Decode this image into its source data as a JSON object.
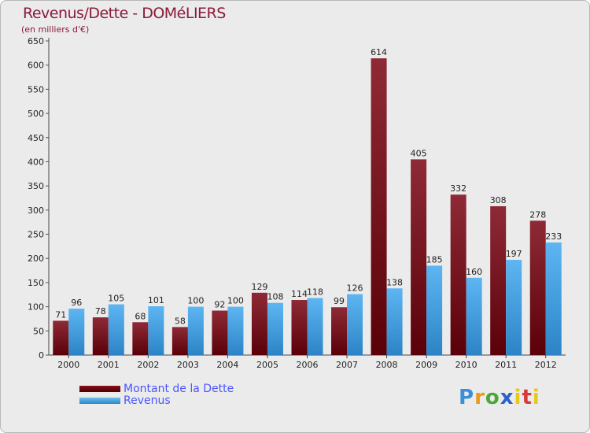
{
  "header": {
    "title": "Revenus/Dette - DOMéLIERS",
    "subtitle": "(en milliers d'€)"
  },
  "legend": {
    "debt_label": "Montant de la Dette",
    "revenue_label": "Revenus"
  },
  "logo": {
    "text": "Proxiti"
  },
  "colors": {
    "debt_top": "#8e2a36",
    "debt_bottom": "#5a0008",
    "revenue_top": "#5db6f2",
    "revenue_bottom": "#2c84c6",
    "title": "#8b1a3a",
    "legend_text": "#4a55ff"
  },
  "chart_data": {
    "type": "bar",
    "title": "Revenus/Dette - DOMéLIERS",
    "ylabel": "(en milliers d'€)",
    "xlabel": "",
    "ylim": [
      0,
      650
    ],
    "ytick_step": 50,
    "grid": false,
    "legend_position": "bottom-left",
    "categories": [
      "2000",
      "2001",
      "2002",
      "2003",
      "2004",
      "2005",
      "2006",
      "2007",
      "2008",
      "2009",
      "2010",
      "2011",
      "2012"
    ],
    "series": [
      {
        "name": "Montant de la Dette",
        "values": [
          71,
          78,
          68,
          58,
          92,
          129,
          114,
          99,
          614,
          405,
          332,
          308,
          278
        ]
      },
      {
        "name": "Revenus",
        "values": [
          96,
          105,
          101,
          100,
          100,
          108,
          118,
          126,
          138,
          185,
          160,
          197,
          233
        ]
      }
    ]
  }
}
